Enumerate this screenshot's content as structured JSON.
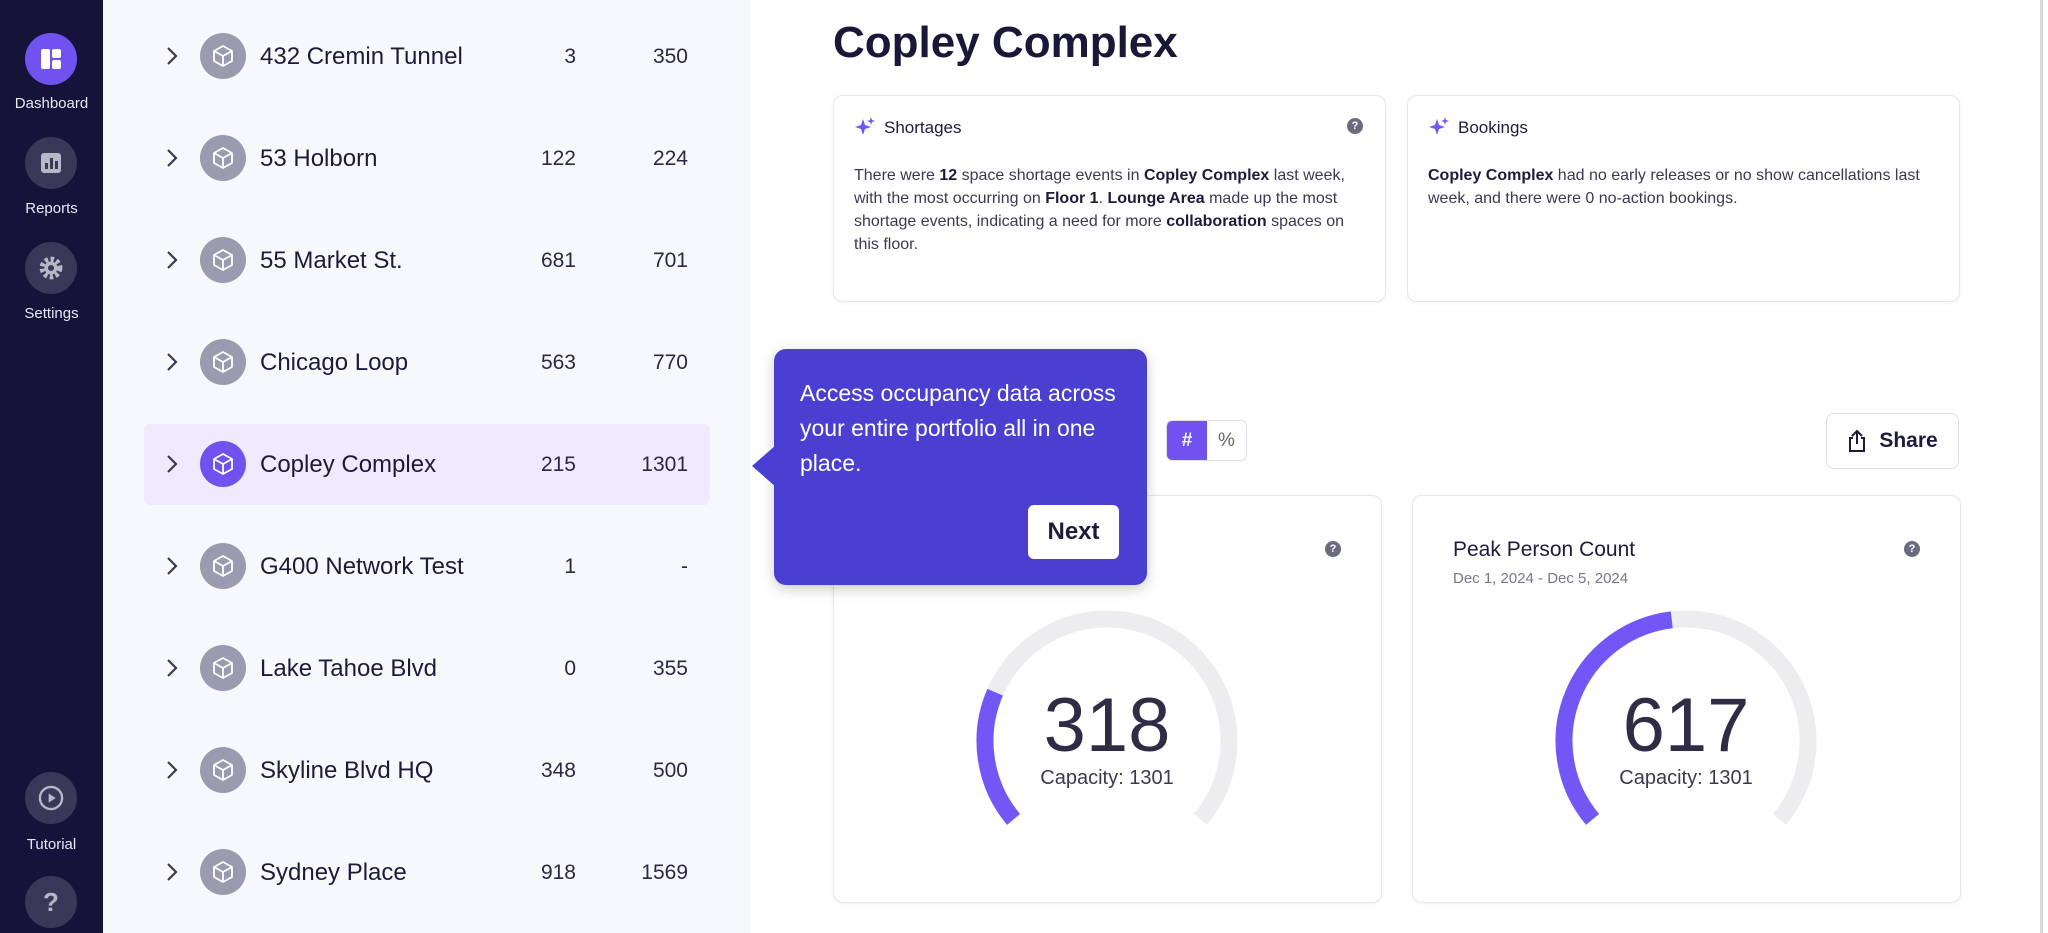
{
  "sidebar": {
    "items": [
      "Dashboard",
      "Reports",
      "Settings"
    ],
    "tutorial": "Tutorial"
  },
  "buildings": {
    "rows": [
      [
        "432 Cremin Tunnel",
        3,
        350
      ],
      [
        "53 Holborn",
        122,
        224
      ],
      [
        "55 Market St.",
        681,
        701
      ],
      [
        "Chicago Loop",
        563,
        770
      ],
      [
        "Copley Complex",
        215,
        1301
      ],
      [
        "G400 Network Test",
        1,
        "-"
      ],
      [
        "Lake Tahoe Blvd",
        0,
        355
      ],
      [
        "Skyline Blvd HQ",
        348,
        500
      ],
      [
        "Sydney Place",
        918,
        1569
      ]
    ],
    "selected": 4
  },
  "title": "Copley Complex",
  "insights": [
    {
      "heading": "Shortages",
      "body": [
        {
          "text": "There were ",
          "bold": false
        },
        {
          "text": "12",
          "bold": true
        },
        {
          "text": " space shortage events in ",
          "bold": false
        },
        {
          "text": "Copley Complex",
          "bold": true
        },
        {
          "text": " last week, with the most occurring on ",
          "bold": false
        },
        {
          "text": "Floor 1",
          "bold": true
        },
        {
          "text": ". ",
          "bold": false
        },
        {
          "text": "Lounge Area",
          "bold": true
        },
        {
          "text": " made up the most shortage events, indicating a need for more ",
          "bold": false
        },
        {
          "text": "collaboration",
          "bold": true
        },
        {
          "text": " spaces on this floor.",
          "bold": false
        }
      ]
    },
    {
      "heading": "Bookings",
      "body": [
        {
          "text": "Copley Complex",
          "bold": true
        },
        {
          "text": " had no early releases or no show cancellations last week, and there were 0 no-action bookings.",
          "bold": false
        }
      ]
    }
  ],
  "toggle": [
    "#",
    "%"
  ],
  "share": "Share",
  "gauges": [
    {
      "value": 318,
      "capacity": 1301,
      "capacity_label": "Capacity: 1301"
    },
    {
      "title": "Peak Person Count",
      "date": "Dec 1, 2024 - Dec 5, 2024",
      "value": 617,
      "capacity": 1301,
      "capacity_label": "Capacity: 1301"
    }
  ],
  "tooltip": {
    "text": "Access occupancy data across your entire portfolio all in one place.",
    "button": "Next"
  }
}
